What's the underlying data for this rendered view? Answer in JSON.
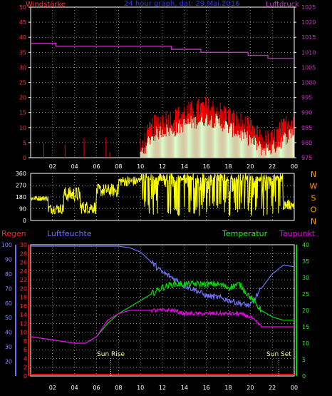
{
  "header": {
    "left_title": "Windstärke",
    "center_title": "24 hour graph, dat: 29.Mai.2016",
    "right_title": "Luftdruck"
  },
  "colors": {
    "wind_gust": "#ff0000",
    "wind_avg": "#d8ffd0",
    "pressure": "#cc33cc",
    "direction": "#ffff00",
    "humidity": "#7070ff",
    "temperature": "#00dd00",
    "dewpoint": "#ee00ee",
    "rain": "#ff0000",
    "axis": "#ffffff",
    "grid": "#ffffff"
  },
  "labels": {
    "regen": "Regen",
    "luftfeuchte": "Luftfeuchte",
    "temperatur": "Temperatur",
    "taupunkt": "Taupunkt",
    "sun_rise": "Sun Rise",
    "sun_set": "Sun Set"
  },
  "chart_data": [
    {
      "type": "line",
      "name": "wind_pressure",
      "x_ticks": [
        "02",
        "04",
        "06",
        "08",
        "10",
        "12",
        "14",
        "16",
        "18",
        "20",
        "22",
        "00"
      ],
      "left_ylim": [
        0,
        50
      ],
      "left_ticks": [
        "0",
        "5",
        "10",
        "15",
        "20",
        "25",
        "30",
        "35",
        "40",
        "45",
        "50"
      ],
      "right_ylim": [
        975,
        1025
      ],
      "right_ticks": [
        "975",
        "980",
        "985",
        "990",
        "995",
        "1000",
        "1005",
        "1010",
        "1015",
        "1020",
        "1025"
      ],
      "grid": true,
      "wind_profile_hours": [
        0,
        1,
        2,
        3,
        4,
        5,
        6,
        7,
        8,
        9,
        10,
        11,
        12,
        13,
        14,
        15,
        16,
        17,
        18,
        19,
        20,
        21,
        22,
        23,
        24
      ],
      "wind_gust_profile": [
        1,
        2,
        2,
        1,
        4,
        2,
        1,
        1,
        4,
        2,
        3,
        10,
        13,
        13,
        15,
        16,
        17,
        16,
        14,
        12,
        10,
        6,
        6,
        10,
        14
      ],
      "wind_avg_profile": [
        0,
        0.5,
        0.5,
        0,
        1,
        0.5,
        0,
        0,
        1,
        0.5,
        1,
        7,
        9,
        9,
        11,
        12,
        13,
        12,
        10,
        8,
        6,
        3,
        3,
        6,
        9
      ],
      "pressure_steps": [
        {
          "from": 0,
          "to": 2.3,
          "value": 1013
        },
        {
          "from": 2.3,
          "to": 12.8,
          "value": 1012
        },
        {
          "from": 12.8,
          "to": 15.5,
          "value": 1011
        },
        {
          "from": 15.5,
          "to": 19.8,
          "value": 1010
        },
        {
          "from": 19.8,
          "to": 21.6,
          "value": 1009
        },
        {
          "from": 21.6,
          "to": 24,
          "value": 1008
        }
      ]
    },
    {
      "type": "line",
      "name": "wind_direction",
      "ylim": [
        0,
        360
      ],
      "left_ticks": [
        "0",
        "90",
        "180",
        "270",
        "360"
      ],
      "right_labels": [
        "N",
        "W",
        "S",
        "O",
        "N"
      ],
      "grid": true,
      "direction_profile": [
        {
          "from": 0,
          "to": 1.6,
          "base": 170,
          "jitter": 20
        },
        {
          "from": 1.6,
          "to": 3.0,
          "base": 90,
          "jitter": 40
        },
        {
          "from": 3.0,
          "to": 4.5,
          "base": 200,
          "jitter": 60
        },
        {
          "from": 4.5,
          "to": 6.0,
          "base": 100,
          "jitter": 50
        },
        {
          "from": 6.0,
          "to": 8.0,
          "base": 230,
          "jitter": 50
        },
        {
          "from": 8.0,
          "to": 10.0,
          "base": 300,
          "jitter": 40
        },
        {
          "from": 10.0,
          "to": 23.0,
          "base": 330,
          "jitter": 30,
          "spikes": true
        },
        {
          "from": 23.0,
          "to": 24,
          "base": 120,
          "jitter": 40
        }
      ]
    },
    {
      "type": "line",
      "name": "humidity_temperature",
      "xlim_hours": [
        0,
        24
      ],
      "rain_ticks": [
        "0",
        "2",
        "4",
        "6",
        "8",
        "10",
        "12",
        "14",
        "16",
        "18",
        "20",
        "22",
        "24",
        "26",
        "28",
        "30"
      ],
      "humidity_ticks": [
        "20",
        "30",
        "40",
        "50",
        "60",
        "70",
        "80",
        "90",
        "100"
      ],
      "humidity_ylim": [
        20,
        100
      ],
      "rain_ylim": [
        0,
        30
      ],
      "temperature_ticks": [
        "0",
        "5",
        "10",
        "15",
        "20",
        "25",
        "30",
        "35",
        "40"
      ],
      "temperature_ylim": [
        0,
        40
      ],
      "grid": true,
      "humidity_profile": [
        [
          0,
          99
        ],
        [
          6,
          99
        ],
        [
          8,
          99
        ],
        [
          9,
          98
        ],
        [
          10,
          95
        ],
        [
          11,
          88
        ],
        [
          12,
          81
        ],
        [
          13,
          77
        ],
        [
          14,
          72
        ],
        [
          15,
          69
        ],
        [
          16,
          65
        ],
        [
          17,
          64
        ],
        [
          18,
          62
        ],
        [
          19,
          60
        ],
        [
          20,
          58
        ],
        [
          21,
          70
        ],
        [
          22,
          80
        ],
        [
          23,
          86
        ],
        [
          24,
          85
        ]
      ],
      "temperature_profile": [
        [
          0,
          12
        ],
        [
          2,
          11
        ],
        [
          4,
          10
        ],
        [
          5,
          10
        ],
        [
          6,
          12
        ],
        [
          7,
          16
        ],
        [
          8,
          19
        ],
        [
          9,
          21
        ],
        [
          10,
          23
        ],
        [
          11,
          25
        ],
        [
          12,
          27
        ],
        [
          13,
          28
        ],
        [
          14,
          28
        ],
        [
          15,
          28
        ],
        [
          16,
          28
        ],
        [
          17,
          28
        ],
        [
          18,
          27
        ],
        [
          19,
          28
        ],
        [
          20,
          24
        ],
        [
          21,
          20
        ],
        [
          22,
          18
        ],
        [
          23,
          17
        ],
        [
          24,
          17
        ]
      ],
      "dewpoint_profile": [
        [
          0,
          12
        ],
        [
          2,
          11
        ],
        [
          4,
          10
        ],
        [
          5,
          10
        ],
        [
          6,
          12
        ],
        [
          7,
          17
        ],
        [
          8,
          19
        ],
        [
          9,
          20
        ],
        [
          10,
          20
        ],
        [
          11,
          20
        ],
        [
          12,
          20
        ],
        [
          13,
          20
        ],
        [
          14,
          19
        ],
        [
          15,
          19
        ],
        [
          16,
          19
        ],
        [
          17,
          19
        ],
        [
          18,
          19
        ],
        [
          19,
          19
        ],
        [
          20,
          18
        ],
        [
          21,
          15
        ],
        [
          22,
          15
        ],
        [
          23,
          15
        ],
        [
          24,
          15
        ]
      ],
      "rain_values": [
        0
      ],
      "sun_rise_hour": 7.3,
      "sun_set_hour": 22.6
    }
  ]
}
